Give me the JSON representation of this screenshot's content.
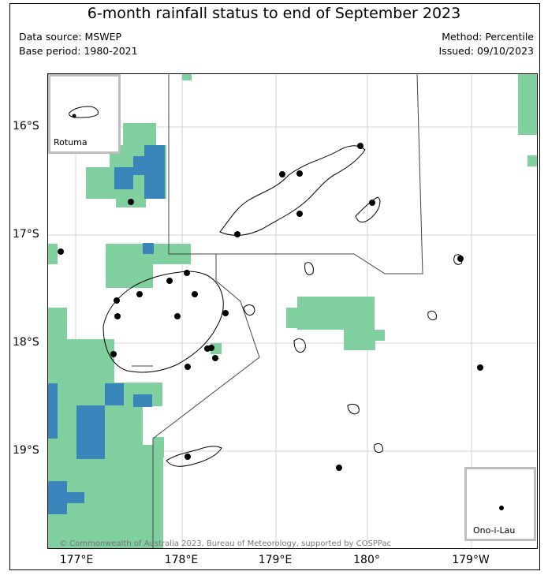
{
  "title": "6-month rainfall status to end of September 2023",
  "data_source": "Data source: MSWEP",
  "base_period": "Base period: 1980-2021",
  "method": "Method: Percentile",
  "issued": "Issued: 09/10/2023",
  "lat_labels": [
    "16°S",
    "17°S",
    "18°S",
    "19°S"
  ],
  "lon_labels": [
    "177°E",
    "178°E",
    "179°E",
    "180°",
    "179°W"
  ],
  "credit": "© Commonwealth of Australia 2023, Bureau of Meteorology, supported by COSPPac",
  "inset_rotuma": "Rotuma",
  "inset_onoilau": "Ono-i-Lau",
  "colors": {
    "light_green": "#7fcf9f",
    "blue": "#3a86bb",
    "grid": "#d6d6d6"
  }
}
